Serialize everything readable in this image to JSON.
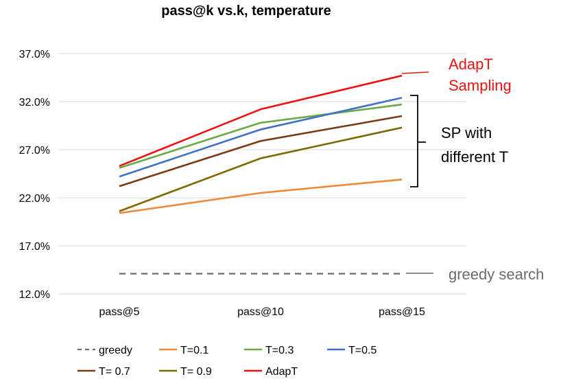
{
  "chart_data": {
    "type": "line",
    "title": "pass@k vs.k, temperature",
    "xlabel": "",
    "ylabel": "",
    "categories": [
      "pass@5",
      "pass@10",
      "pass@15"
    ],
    "ylim": [
      12.0,
      37.0
    ],
    "yticks": [
      "12.0%",
      "17.0%",
      "22.0%",
      "27.0%",
      "32.0%",
      "37.0%"
    ],
    "grid": "horizontal",
    "series": [
      {
        "name": "greedy",
        "values": [
          14.1,
          14.1,
          14.1
        ],
        "color": "#6b6b6b",
        "dash": true
      },
      {
        "name": "T=0.1",
        "values": [
          20.4,
          22.5,
          23.9
        ],
        "color": "#f0883a",
        "dash": false
      },
      {
        "name": "T=0.3",
        "values": [
          25.1,
          29.8,
          31.7
        ],
        "color": "#6aaa44",
        "dash": false
      },
      {
        "name": "T=0.5",
        "values": [
          24.2,
          29.1,
          32.4
        ],
        "color": "#3f6fc6",
        "dash": false
      },
      {
        "name": "T= 0.7",
        "values": [
          23.2,
          27.9,
          30.5
        ],
        "color": "#7b3a12",
        "dash": false
      },
      {
        "name": "T= 0.9",
        "values": [
          20.6,
          26.1,
          29.3
        ],
        "color": "#7d6a00",
        "dash": false
      },
      {
        "name": "AdapT",
        "values": [
          25.3,
          31.2,
          34.7
        ],
        "color": "#ee1111",
        "dash": false
      }
    ],
    "annotations": {
      "adapt_line1": "AdapT",
      "adapt_line2": "Sampling",
      "adapt_color": "#ee1111",
      "sp_line1": "SP with",
      "sp_line2": "different T",
      "greedy_label": "greedy search",
      "greedy_color": "#6b6b6b"
    }
  }
}
